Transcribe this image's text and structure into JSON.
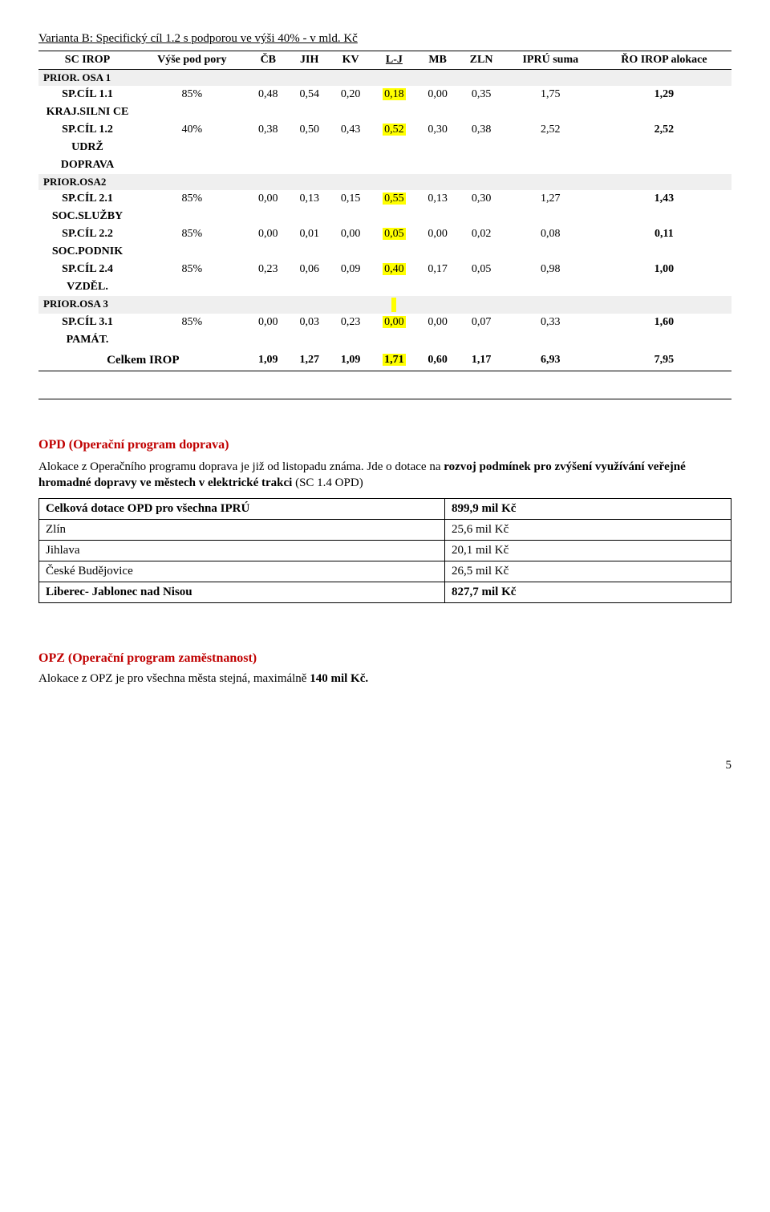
{
  "title": "Varianta B: Specifický cíl 1.2 s podporou ve výši 40% - v mld. Kč",
  "table": {
    "headers": {
      "sc_irop": "SC IROP",
      "vyse": "Výše pod pory",
      "cb": "ČB",
      "jih": "JIH",
      "kv": "KV",
      "lj": "L-J",
      "mb": "MB",
      "zln": "ZLN",
      "ipru": "IPRÚ suma",
      "ro": "ŘO IROP alokace"
    },
    "sections": {
      "s1": "PRIOR. OSA  1",
      "s2": "PRIOR.OSA2",
      "s3": "PRIOR.OSA 3"
    },
    "rows": {
      "r1": {
        "label": "SP.CÍL 1.1",
        "sub": "KRAJ.SILNI CE",
        "pct": "85%",
        "v": [
          "0,48",
          "0,54",
          "0,20",
          "0,18",
          "0,00",
          "0,35",
          "1,75",
          "1,29"
        ]
      },
      "r2": {
        "label": "SP.CÍL 1.2",
        "sub": "UDRŽ",
        "sub2": "DOPRAVA",
        "pct": "40%",
        "v": [
          "0,38",
          "0,50",
          "0,43",
          "0,52",
          "0,30",
          "0,38",
          "2,52",
          "2,52"
        ]
      },
      "r3": {
        "label": "SP.CÍL 2.1",
        "sub": "SOC.SLUŽBY",
        "pct": "85%",
        "v": [
          "0,00",
          "0,13",
          "0,15",
          "0,55",
          "0,13",
          "0,30",
          "1,27",
          "1,43"
        ]
      },
      "r4": {
        "label": "SP.CÍL 2.2",
        "sub": "SOC.PODNIK",
        "pct": "85%",
        "v": [
          "0,00",
          "0,01",
          "0,00",
          "0,05",
          "0,00",
          "0,02",
          "0,08",
          "0,11"
        ]
      },
      "r5": {
        "label": "SP.CÍL 2.4",
        "sub": "VZDĚL.",
        "pct": "85%",
        "v": [
          "0,23",
          "0,06",
          "0,09",
          "0,40",
          "0,17",
          "0,05",
          "0,98",
          "1,00"
        ]
      },
      "r6": {
        "label": "SP.CÍL 3.1",
        "sub": "PAMÁT.",
        "pct": "85%",
        "v": [
          "0,00",
          "0,03",
          "0,23",
          "0,00",
          "0,00",
          "0,07",
          "0,33",
          "1,60"
        ]
      }
    },
    "total": {
      "label": "Celkem IROP",
      "v": [
        "1,09",
        "1,27",
        "1,09",
        "1,71",
        "0,60",
        "1,17",
        "6,93",
        "7,95"
      ]
    },
    "highlight_color": "#ffff00",
    "section_bg": "#efefef"
  },
  "opd": {
    "heading": "OPD (Operační program doprava)",
    "heading_color": "#c00000",
    "para_pre": "Alokace z Operačního programu doprava je již od listopadu známa. Jde o dotace na ",
    "para_bold": "rozvoj podmínek pro zvýšení využívání veřejné hromadné dopravy ve městech v elektrické trakci",
    "para_post": " (SC 1.4 OPD)",
    "rows": [
      {
        "label": "Celková dotace OPD pro všechna IPRÚ",
        "value": "899,9 mil Kč",
        "bold": true
      },
      {
        "label": "Zlín",
        "value": "  25,6 mil Kč",
        "bold": false
      },
      {
        "label": "Jihlava",
        "value": "  20,1 mil Kč",
        "bold": false
      },
      {
        "label": "České Budějovice",
        "value": "  26,5 mil Kč",
        "bold": false
      },
      {
        "label": "Liberec- Jablonec nad Nisou",
        "value": "827,7 mil Kč",
        "bold": true
      }
    ]
  },
  "opz": {
    "heading": "OPZ (Operační program zaměstnanost)",
    "heading_color": "#c00000",
    "para_pre": " Alokace z OPZ je pro všechna města stejná, maximálně ",
    "para_bold": "140 mil Kč.",
    "para_post": ""
  },
  "page_number": "5"
}
